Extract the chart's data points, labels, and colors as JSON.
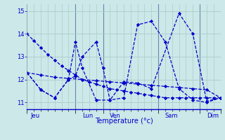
{
  "background_color": "#cce8e8",
  "grid_color": "#aacccc",
  "line_color": "#0000cc",
  "xlabel": "Température (°c)",
  "ylim": [
    10.7,
    15.3
  ],
  "yticks": [
    11,
    12,
    13,
    14,
    15
  ],
  "xlim": [
    0,
    28
  ],
  "x_day_positions": [
    0.5,
    8,
    12,
    20,
    26
  ],
  "x_day_labels": [
    "Jeu",
    "Lun",
    "Ven",
    "Sam",
    "Dim"
  ],
  "x_sep_positions": [
    0,
    7,
    11,
    19,
    25,
    28
  ],
  "n_minor_gridlines": 28,
  "series": [
    {
      "x": [
        0,
        1,
        2,
        3,
        4,
        5,
        6,
        7,
        8,
        9,
        10,
        11,
        12,
        13,
        14,
        15,
        16,
        17,
        18,
        19,
        20,
        21,
        22,
        23,
        24,
        25,
        26,
        27,
        28
      ],
      "y": [
        14.0,
        13.7,
        13.4,
        13.1,
        12.85,
        12.6,
        12.4,
        12.2,
        12.0,
        11.9,
        11.8,
        11.7,
        11.6,
        11.55,
        11.5,
        11.45,
        11.4,
        11.35,
        11.3,
        11.25,
        11.2,
        11.2,
        11.2,
        11.2,
        11.2,
        11.2,
        11.2,
        11.2,
        11.2
      ]
    },
    {
      "x": [
        0,
        2,
        4,
        6,
        8,
        10,
        12,
        14,
        16,
        18,
        20,
        22,
        24,
        26,
        28
      ],
      "y": [
        12.3,
        12.2,
        12.1,
        12.05,
        12.0,
        11.95,
        11.9,
        11.85,
        11.8,
        11.75,
        11.7,
        11.65,
        11.6,
        11.55,
        11.2
      ]
    },
    {
      "x": [
        0,
        2,
        4,
        6,
        7,
        8,
        10,
        11,
        12,
        14,
        16,
        18,
        20,
        22,
        24,
        26,
        28
      ],
      "y": [
        12.3,
        11.55,
        11.2,
        12.0,
        12.15,
        13.0,
        13.65,
        12.5,
        11.1,
        11.2,
        14.4,
        14.55,
        13.65,
        11.6,
        11.1,
        11.0,
        11.2
      ]
    },
    {
      "x": [
        0,
        2,
        4,
        6,
        7,
        8,
        10,
        12,
        14,
        16,
        18,
        22,
        24,
        26,
        28
      ],
      "y": [
        12.3,
        11.55,
        11.2,
        12.0,
        13.65,
        12.5,
        11.1,
        11.1,
        11.9,
        11.85,
        11.6,
        14.9,
        14.0,
        11.05,
        11.2
      ]
    }
  ]
}
